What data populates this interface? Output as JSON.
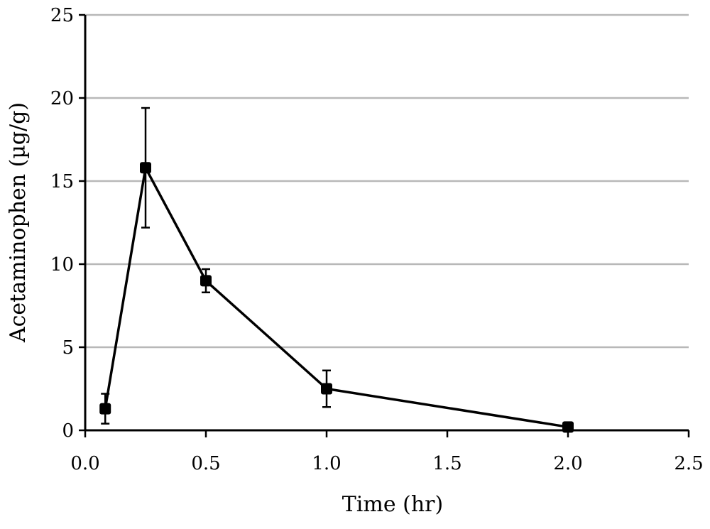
{
  "chart_data": {
    "type": "line",
    "xlabel": "Time (hr)",
    "ylabel": "Acetaminophen (µg/g)",
    "xlim": [
      0,
      2.5
    ],
    "ylim": [
      0,
      25
    ],
    "x_ticks": [
      "0.0",
      "0.5",
      "1.0",
      "1.5",
      "2.0",
      "2.5"
    ],
    "y_ticks": [
      "0",
      "5",
      "10",
      "15",
      "20",
      "25"
    ],
    "grid": "horizontal",
    "series": [
      {
        "x": [
          0.083,
          0.25,
          0.5,
          1.0,
          2.0
        ],
        "y": [
          1.3,
          15.8,
          9.0,
          2.5,
          0.2
        ],
        "error": [
          0.9,
          3.6,
          0.7,
          1.1,
          0.2
        ],
        "color": "#000000"
      }
    ]
  }
}
